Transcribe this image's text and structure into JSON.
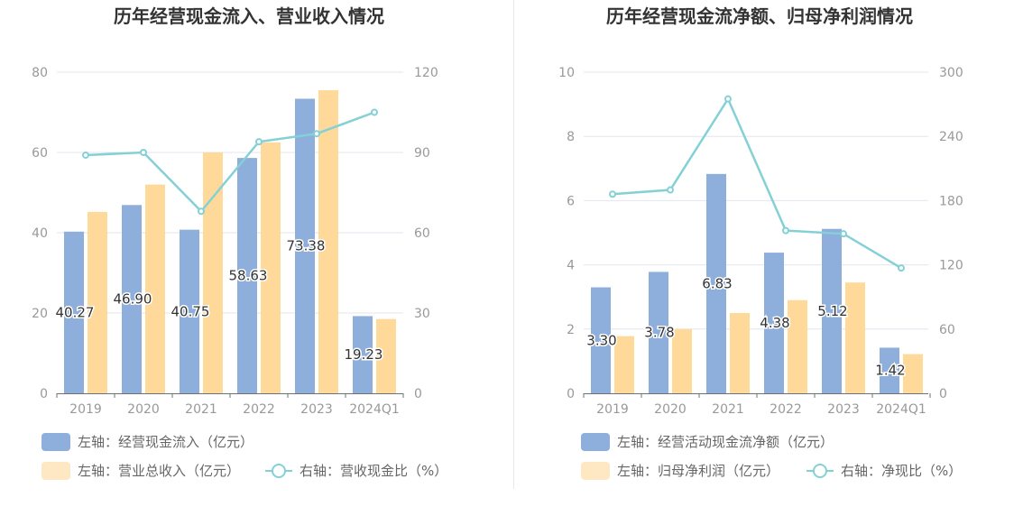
{
  "colors": {
    "blue": "#8eaedb",
    "orange": "#ffd99a",
    "orange_legend": "#fde8c3",
    "line": "#84d1d5",
    "grid": "#e3e6f0",
    "axis_text": "#999999",
    "title": "#333333",
    "legend_text": "#666666"
  },
  "chart_data": [
    {
      "id": "left",
      "type": "bar",
      "title": "历年经营现金流入、营业收入情况",
      "categories": [
        "2019",
        "2020",
        "2021",
        "2022",
        "2023",
        "2024Q1"
      ],
      "left_axis": {
        "min": 0,
        "max": 80,
        "ticks": [
          "0",
          "20",
          "40",
          "60",
          "80"
        ]
      },
      "right_axis": {
        "min": 0,
        "max": 120,
        "ticks": [
          "0",
          "30",
          "60",
          "90",
          "120"
        ]
      },
      "series": [
        {
          "name": "左轴：经营现金流入（亿元）",
          "kind": "bar",
          "axis": "left",
          "color": "blue",
          "values": [
            40.27,
            46.9,
            40.75,
            58.63,
            73.38,
            19.23
          ],
          "labels": [
            "40.27",
            "46.90",
            "40.75",
            "58.63",
            "73.38",
            "19.23"
          ]
        },
        {
          "name": "左轴：营业总收入（亿元）",
          "kind": "bar",
          "axis": "left",
          "color": "orange",
          "values": [
            45.2,
            52.0,
            60.0,
            62.5,
            75.5,
            18.5
          ]
        },
        {
          "name": "右轴：营收现金比（%）",
          "kind": "line",
          "axis": "right",
          "color": "line",
          "values": [
            89,
            90,
            68,
            94,
            97,
            105
          ]
        }
      ]
    },
    {
      "id": "right",
      "type": "bar",
      "title": "历年经营现金流净额、归母净利润情况",
      "categories": [
        "2019",
        "2020",
        "2021",
        "2022",
        "2023",
        "2024Q1"
      ],
      "left_axis": {
        "min": 0,
        "max": 10,
        "ticks": [
          "0",
          "2",
          "4",
          "6",
          "8",
          "10"
        ]
      },
      "right_axis": {
        "min": 0,
        "max": 300,
        "ticks": [
          "0",
          "60",
          "120",
          "180",
          "240",
          "300"
        ]
      },
      "series": [
        {
          "name": "左轴：经营活动现金流净额（亿元）",
          "kind": "bar",
          "axis": "left",
          "color": "blue",
          "values": [
            3.3,
            3.78,
            6.83,
            4.38,
            5.12,
            1.42
          ],
          "labels": [
            "3.30",
            "3.78",
            "6.83",
            "4.38",
            "5.12",
            "1.42"
          ]
        },
        {
          "name": "左轴：归母净利润（亿元）",
          "kind": "bar",
          "axis": "left",
          "color": "orange",
          "values": [
            1.78,
            2.0,
            2.5,
            2.9,
            3.45,
            1.22
          ]
        },
        {
          "name": "右轴：净现比（%）",
          "kind": "line",
          "axis": "right",
          "color": "line",
          "values": [
            186,
            190,
            275,
            152,
            149,
            117
          ]
        }
      ]
    }
  ]
}
